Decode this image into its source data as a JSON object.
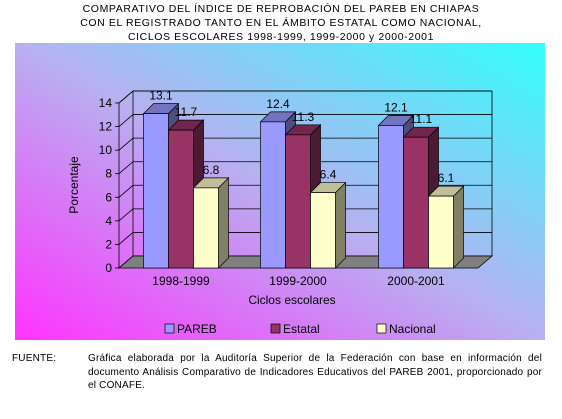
{
  "title_lines": [
    "COMPARATIVO DEL ÍNDICE DE REPROBACIÓN DEL PAREB EN CHIAPAS",
    "CON EL REGISTRADO TANTO EN EL ÁMBITO ESTATAL COMO NACIONAL,",
    "CICLOS ESCOLARES 1998-1999, 1999-2000 y 2000-2001"
  ],
  "chart_data": {
    "type": "bar",
    "categories": [
      "1998-1999",
      "1999-2000",
      "2000-2001"
    ],
    "series": [
      {
        "name": "PAREB",
        "values": [
          13.1,
          12.4,
          12.1
        ],
        "color": "#9999ff"
      },
      {
        "name": "Estatal",
        "values": [
          11.7,
          11.3,
          11.1
        ],
        "color": "#993366"
      },
      {
        "name": "Nacional",
        "values": [
          6.8,
          6.4,
          6.1
        ],
        "color": "#ffffcc"
      }
    ],
    "xlabel": "Ciclos escolares",
    "ylabel": "Porcentaje",
    "ylim": [
      0,
      14
    ],
    "yticks": [
      "0",
      "2",
      "4",
      "6",
      "8",
      "10",
      "12",
      "14"
    ],
    "data_labels": [
      "13.1",
      "11.7",
      "6.8",
      "12.4",
      "11.3",
      "6.4",
      "12.1",
      "11.1",
      "6.1"
    ],
    "grid": true,
    "legend_position": "bottom",
    "background_gradient": [
      "#ff33ff",
      "#33ffff"
    ]
  },
  "source": {
    "label": "FUENTE:",
    "text": "Gráfica elaborada por la Auditoría Superior de la Federación con base en información del documento Análisis Comparativo de Indicadores Educativos del PAREB 2001, proporcionado por el CONAFE."
  }
}
